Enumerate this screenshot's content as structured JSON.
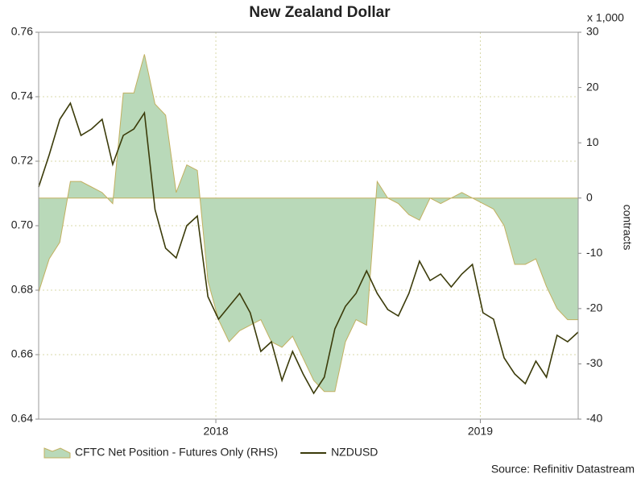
{
  "chart_data": {
    "type": "combo",
    "title": "New Zealand Dollar",
    "y2_unit": "x 1,000",
    "y2label": "contracts",
    "source": "Source: Refinitiv Datastream",
    "x": [
      2017.33,
      2017.37,
      2017.41,
      2017.45,
      2017.49,
      2017.53,
      2017.57,
      2017.61,
      2017.65,
      2017.69,
      2017.73,
      2017.77,
      2017.81,
      2017.85,
      2017.89,
      2017.93,
      2017.97,
      2018.01,
      2018.05,
      2018.09,
      2018.13,
      2018.17,
      2018.21,
      2018.25,
      2018.29,
      2018.33,
      2018.37,
      2018.41,
      2018.45,
      2018.49,
      2018.53,
      2018.57,
      2018.61,
      2018.65,
      2018.69,
      2018.73,
      2018.77,
      2018.81,
      2018.85,
      2018.89,
      2018.93,
      2018.97,
      2019.01,
      2019.05,
      2019.09,
      2019.13,
      2019.17,
      2019.21,
      2019.25,
      2019.29,
      2019.33,
      2019.37
    ],
    "xlim": [
      2017.33,
      2019.37
    ],
    "xticks": [
      2018,
      2019
    ],
    "ylim": [
      0.64,
      0.76
    ],
    "yticks": [
      0.64,
      0.66,
      0.68,
      {
        "value": 0.7,
        "label": "0.70"
      },
      0.72,
      0.74,
      0.76
    ],
    "y2lim": [
      -40,
      30
    ],
    "y2ticks": [
      -40,
      -30,
      -20,
      -10,
      0,
      10,
      20,
      30
    ],
    "grid": true,
    "series": [
      {
        "name": "CFTC Net Position - Futures Only (RHS)",
        "type": "area",
        "axis": "y2",
        "color": "#b9d9b9",
        "values": [
          -17,
          -11,
          -8,
          3,
          3,
          2,
          1,
          -1,
          19,
          19,
          26,
          17,
          15,
          1,
          6,
          5,
          -15,
          -22,
          -26,
          -24,
          -23,
          -22,
          -26,
          -27,
          -25,
          -29,
          -33,
          -35,
          -35,
          -26,
          -22,
          -23,
          3,
          0,
          -1,
          -3,
          -4,
          0,
          -1,
          0,
          1,
          0,
          -1,
          -2,
          -5,
          -12,
          -12,
          -11,
          -16,
          -20,
          -22,
          -22
        ]
      },
      {
        "name": "NZDUSD",
        "type": "line",
        "color": "#3b3b0a",
        "values": [
          0.712,
          0.722,
          0.733,
          0.738,
          0.728,
          0.73,
          0.733,
          0.719,
          0.728,
          0.73,
          0.735,
          0.705,
          0.693,
          0.69,
          0.7,
          0.703,
          0.678,
          0.671,
          0.675,
          0.679,
          0.673,
          0.661,
          0.664,
          0.652,
          0.661,
          0.654,
          0.648,
          0.653,
          0.668,
          0.675,
          0.679,
          0.686,
          0.679,
          0.674,
          0.672,
          0.679,
          0.689,
          0.683,
          0.685,
          0.681,
          0.685,
          0.688,
          0.673,
          0.671,
          0.659,
          0.654,
          0.651,
          0.658,
          0.653,
          0.666,
          0.664,
          0.667
        ]
      }
    ]
  }
}
